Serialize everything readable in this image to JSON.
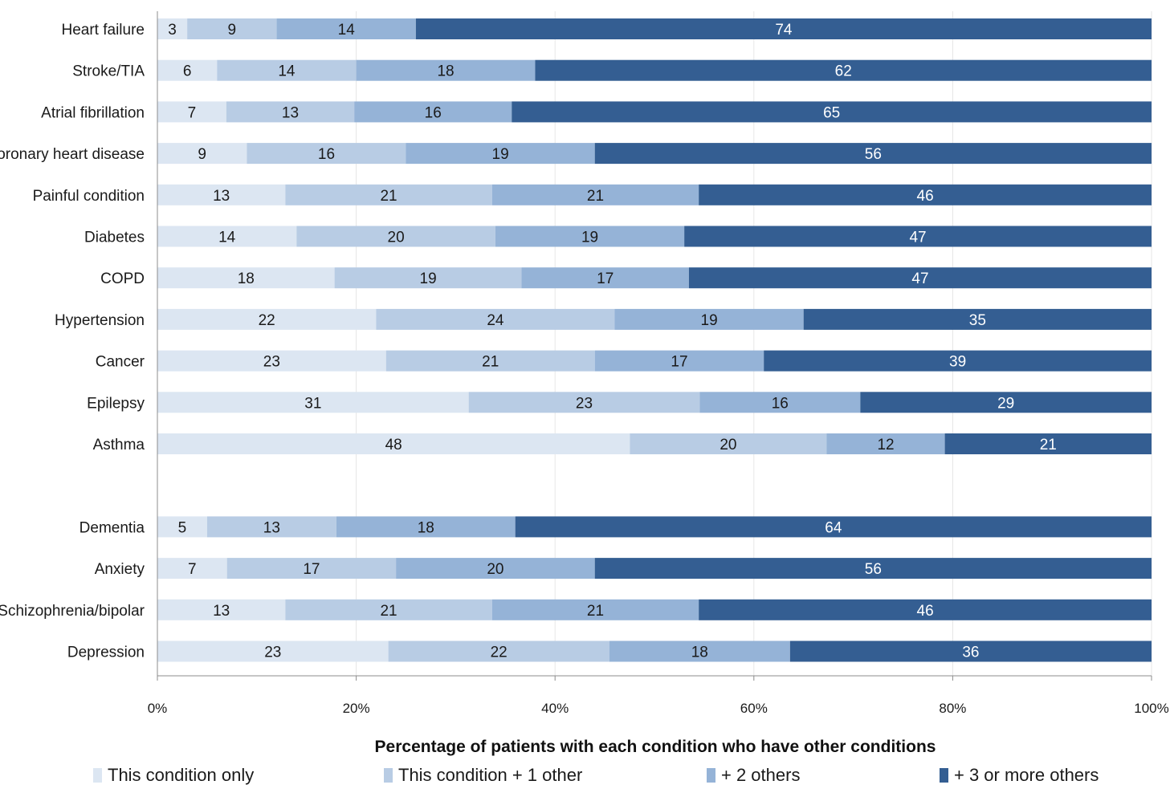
{
  "chart_data": {
    "type": "bar",
    "orientation": "horizontal",
    "stacked": true,
    "percent_stacked": true,
    "xlabel": "Percentage of patients with each condition who have other conditions",
    "ylabel": "",
    "xlim": [
      0,
      100
    ],
    "x_ticks": [
      "0%",
      "20%",
      "40%",
      "60%",
      "80%",
      "100%"
    ],
    "x_tick_values": [
      0,
      20,
      40,
      60,
      80,
      100
    ],
    "grid": true,
    "legend_position": "bottom",
    "groups": [
      {
        "categories": [
          "Heart failure",
          "Stroke/TIA",
          "Atrial fibrillation",
          "Coronary heart disease",
          "Painful condition",
          "Diabetes",
          "COPD",
          "Hypertension",
          "Cancer",
          "Epilepsy",
          "Asthma"
        ]
      },
      {
        "categories": [
          "Dementia",
          "Anxiety",
          "Schizophrenia/bipolar",
          "Depression"
        ]
      }
    ],
    "categories": [
      "Heart failure",
      "Stroke/TIA",
      "Atrial fibrillation",
      "Coronary heart disease",
      "Painful condition",
      "Diabetes",
      "COPD",
      "Hypertension",
      "Cancer",
      "Epilepsy",
      "Asthma",
      "Dementia",
      "Anxiety",
      "Schizophrenia/bipolar",
      "Depression"
    ],
    "series": [
      {
        "name": "This condition only",
        "color": "#dce6f2",
        "label_color": "#1a1a1a",
        "values": [
          3,
          6,
          7,
          9,
          13,
          14,
          18,
          22,
          23,
          31,
          48,
          5,
          7,
          13,
          23
        ]
      },
      {
        "name": "This condition + 1 other",
        "color": "#b8cce4",
        "label_color": "#1a1a1a",
        "values": [
          9,
          14,
          13,
          16,
          21,
          20,
          19,
          24,
          21,
          23,
          20,
          13,
          17,
          21,
          22
        ]
      },
      {
        "name": "+ 2 others",
        "color": "#95b3d7",
        "label_color": "#1a1a1a",
        "values": [
          14,
          18,
          16,
          19,
          21,
          19,
          17,
          19,
          17,
          16,
          12,
          18,
          20,
          21,
          18
        ]
      },
      {
        "name": "+ 3 or more others",
        "color": "#345e92",
        "label_color": "#ffffff",
        "values": [
          74,
          62,
          65,
          56,
          46,
          47,
          47,
          35,
          39,
          29,
          21,
          64,
          56,
          46,
          36
        ]
      }
    ]
  }
}
